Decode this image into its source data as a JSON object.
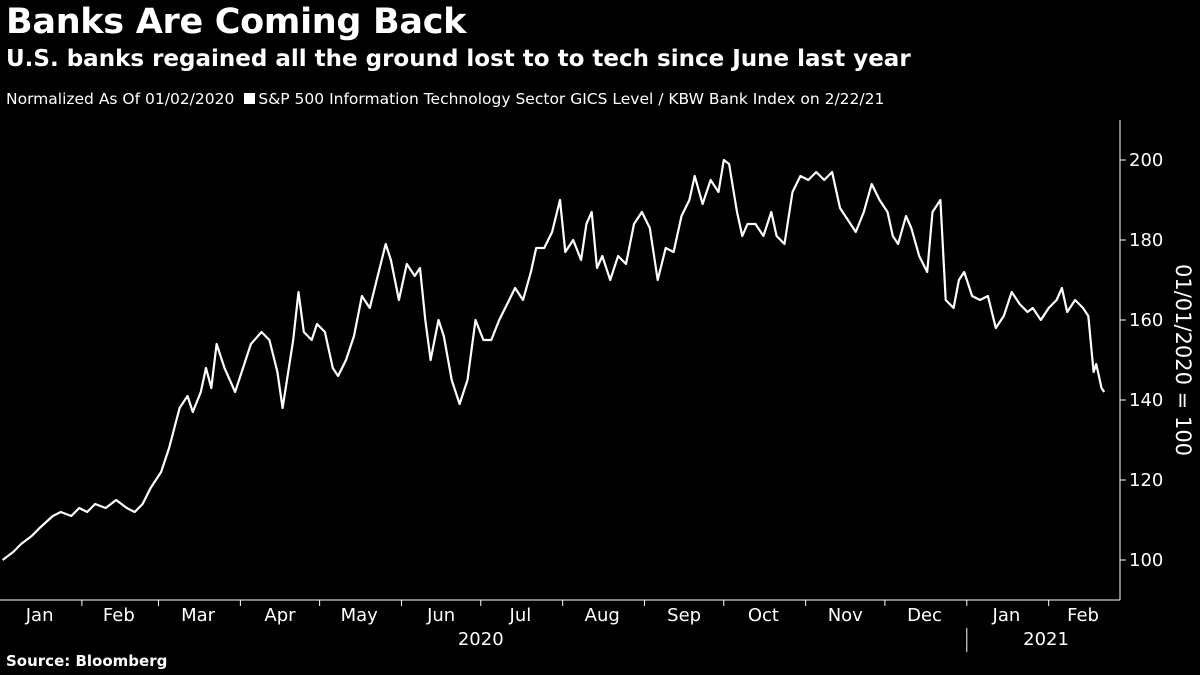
{
  "header": {
    "title": "Banks Are Coming Back",
    "subtitle": "U.S. banks regained all the ground lost to to tech since June last year"
  },
  "legend": {
    "note": "Normalized As Of 01/02/2020",
    "series_label": "S&P 500 Information Technology Sector GICS Level / KBW Bank Index on 2/22/21"
  },
  "footer": {
    "source": "Source: Bloomberg"
  },
  "colors": {
    "background": "#000000",
    "line": "#ffffff"
  },
  "chart_data": {
    "type": "line",
    "ylabel": "01/01/2020 = 100",
    "ylim": [
      90,
      210
    ],
    "yticks": [
      100,
      120,
      140,
      160,
      180,
      200
    ],
    "y_axis_position": "right",
    "grid": false,
    "x_range": [
      "2020-01-01",
      "2021-02-28"
    ],
    "month_labels": [
      {
        "label": "Jan",
        "date": "2020-01-16"
      },
      {
        "label": "Feb",
        "date": "2020-02-15"
      },
      {
        "label": "Mar",
        "date": "2020-03-16"
      },
      {
        "label": "Apr",
        "date": "2020-04-16"
      },
      {
        "label": "May",
        "date": "2020-05-16"
      },
      {
        "label": "Jun",
        "date": "2020-06-16"
      },
      {
        "label": "Jul",
        "date": "2020-07-16"
      },
      {
        "label": "Aug",
        "date": "2020-08-16"
      },
      {
        "label": "Sep",
        "date": "2020-09-16"
      },
      {
        "label": "Oct",
        "date": "2020-10-16"
      },
      {
        "label": "Nov",
        "date": "2020-11-16"
      },
      {
        "label": "Dec",
        "date": "2020-12-16"
      },
      {
        "label": "Jan",
        "date": "2021-01-16"
      },
      {
        "label": "Feb",
        "date": "2021-02-14"
      }
    ],
    "month_boundaries": [
      "2020-02-01",
      "2020-03-01",
      "2020-04-01",
      "2020-05-01",
      "2020-06-01",
      "2020-07-01",
      "2020-08-01",
      "2020-09-01",
      "2020-10-01",
      "2020-11-01",
      "2020-12-01",
      "2021-01-01",
      "2021-02-01"
    ],
    "year_labels": [
      {
        "label": "2020",
        "date": "2020-07-01"
      },
      {
        "label": "2021",
        "date": "2021-01-31"
      }
    ],
    "year_boundary": "2021-01-01",
    "series": [
      {
        "points": [
          [
            "2020-01-02",
            100
          ],
          [
            "2020-01-06",
            102
          ],
          [
            "2020-01-09",
            104
          ],
          [
            "2020-01-13",
            106
          ],
          [
            "2020-01-16",
            108
          ],
          [
            "2020-01-21",
            111
          ],
          [
            "2020-01-24",
            112
          ],
          [
            "2020-01-28",
            111
          ],
          [
            "2020-01-31",
            113
          ],
          [
            "2020-02-03",
            112
          ],
          [
            "2020-02-06",
            114
          ],
          [
            "2020-02-10",
            113
          ],
          [
            "2020-02-14",
            115
          ],
          [
            "2020-02-18",
            113
          ],
          [
            "2020-02-21",
            112
          ],
          [
            "2020-02-24",
            114
          ],
          [
            "2020-02-27",
            118
          ],
          [
            "2020-03-02",
            122
          ],
          [
            "2020-03-05",
            128
          ],
          [
            "2020-03-09",
            138
          ],
          [
            "2020-03-12",
            141
          ],
          [
            "2020-03-14",
            137
          ],
          [
            "2020-03-17",
            142
          ],
          [
            "2020-03-19",
            148
          ],
          [
            "2020-03-21",
            143
          ],
          [
            "2020-03-23",
            154
          ],
          [
            "2020-03-26",
            148
          ],
          [
            "2020-03-30",
            142
          ],
          [
            "2020-04-02",
            148
          ],
          [
            "2020-04-05",
            154
          ],
          [
            "2020-04-09",
            157
          ],
          [
            "2020-04-12",
            155
          ],
          [
            "2020-04-15",
            147
          ],
          [
            "2020-04-17",
            138
          ],
          [
            "2020-04-21",
            155
          ],
          [
            "2020-04-23",
            167
          ],
          [
            "2020-04-25",
            157
          ],
          [
            "2020-04-28",
            155
          ],
          [
            "2020-04-30",
            159
          ],
          [
            "2020-05-03",
            157
          ],
          [
            "2020-05-06",
            148
          ],
          [
            "2020-05-08",
            146
          ],
          [
            "2020-05-11",
            150
          ],
          [
            "2020-05-14",
            156
          ],
          [
            "2020-05-17",
            166
          ],
          [
            "2020-05-20",
            163
          ],
          [
            "2020-05-23",
            171
          ],
          [
            "2020-05-26",
            179
          ],
          [
            "2020-05-28",
            175
          ],
          [
            "2020-05-31",
            165
          ],
          [
            "2020-06-03",
            174
          ],
          [
            "2020-06-06",
            171
          ],
          [
            "2020-06-08",
            173
          ],
          [
            "2020-06-10",
            160
          ],
          [
            "2020-06-12",
            150
          ],
          [
            "2020-06-15",
            160
          ],
          [
            "2020-06-17",
            156
          ],
          [
            "2020-06-20",
            145
          ],
          [
            "2020-06-23",
            139
          ],
          [
            "2020-06-26",
            145
          ],
          [
            "2020-06-29",
            160
          ],
          [
            "2020-07-02",
            155
          ],
          [
            "2020-07-05",
            155
          ],
          [
            "2020-07-08",
            160
          ],
          [
            "2020-07-11",
            164
          ],
          [
            "2020-07-14",
            168
          ],
          [
            "2020-07-17",
            165
          ],
          [
            "2020-07-20",
            172
          ],
          [
            "2020-07-22",
            178
          ],
          [
            "2020-07-25",
            178
          ],
          [
            "2020-07-28",
            182
          ],
          [
            "2020-07-31",
            190
          ],
          [
            "2020-08-02",
            177
          ],
          [
            "2020-08-05",
            180
          ],
          [
            "2020-08-08",
            175
          ],
          [
            "2020-08-10",
            184
          ],
          [
            "2020-08-12",
            187
          ],
          [
            "2020-08-14",
            173
          ],
          [
            "2020-08-16",
            176
          ],
          [
            "2020-08-19",
            170
          ],
          [
            "2020-08-22",
            176
          ],
          [
            "2020-08-25",
            174
          ],
          [
            "2020-08-28",
            184
          ],
          [
            "2020-08-31",
            187
          ],
          [
            "2020-09-03",
            183
          ],
          [
            "2020-09-06",
            170
          ],
          [
            "2020-09-09",
            178
          ],
          [
            "2020-09-12",
            177
          ],
          [
            "2020-09-15",
            186
          ],
          [
            "2020-09-18",
            190
          ],
          [
            "2020-09-20",
            196
          ],
          [
            "2020-09-23",
            189
          ],
          [
            "2020-09-26",
            195
          ],
          [
            "2020-09-29",
            192
          ],
          [
            "2020-10-01",
            200
          ],
          [
            "2020-10-03",
            199
          ],
          [
            "2020-10-06",
            187
          ],
          [
            "2020-10-08",
            181
          ],
          [
            "2020-10-10",
            184
          ],
          [
            "2020-10-13",
            184
          ],
          [
            "2020-10-16",
            181
          ],
          [
            "2020-10-19",
            187
          ],
          [
            "2020-10-21",
            181
          ],
          [
            "2020-10-24",
            179
          ],
          [
            "2020-10-27",
            192
          ],
          [
            "2020-10-30",
            196
          ],
          [
            "2020-11-02",
            195
          ],
          [
            "2020-11-05",
            197
          ],
          [
            "2020-11-08",
            195
          ],
          [
            "2020-11-11",
            197
          ],
          [
            "2020-11-14",
            188
          ],
          [
            "2020-11-17",
            185
          ],
          [
            "2020-11-20",
            182
          ],
          [
            "2020-11-23",
            187
          ],
          [
            "2020-11-26",
            194
          ],
          [
            "2020-11-29",
            190
          ],
          [
            "2020-12-02",
            187
          ],
          [
            "2020-12-04",
            181
          ],
          [
            "2020-12-06",
            179
          ],
          [
            "2020-12-09",
            186
          ],
          [
            "2020-12-11",
            183
          ],
          [
            "2020-12-14",
            176
          ],
          [
            "2020-12-17",
            172
          ],
          [
            "2020-12-19",
            187
          ],
          [
            "2020-12-22",
            190
          ],
          [
            "2020-12-24",
            165
          ],
          [
            "2020-12-27",
            163
          ],
          [
            "2020-12-29",
            170
          ],
          [
            "2020-12-31",
            172
          ],
          [
            "2021-01-03",
            166
          ],
          [
            "2021-01-06",
            165
          ],
          [
            "2021-01-09",
            166
          ],
          [
            "2021-01-12",
            158
          ],
          [
            "2021-01-15",
            161
          ],
          [
            "2021-01-18",
            167
          ],
          [
            "2021-01-21",
            164
          ],
          [
            "2021-01-24",
            162
          ],
          [
            "2021-01-26",
            163
          ],
          [
            "2021-01-29",
            160
          ],
          [
            "2021-02-01",
            163
          ],
          [
            "2021-02-04",
            165
          ],
          [
            "2021-02-06",
            168
          ],
          [
            "2021-02-08",
            162
          ],
          [
            "2021-02-11",
            165
          ],
          [
            "2021-02-14",
            163
          ],
          [
            "2021-02-16",
            161
          ],
          [
            "2021-02-18",
            147
          ],
          [
            "2021-02-19",
            149
          ],
          [
            "2021-02-20",
            146
          ],
          [
            "2021-02-21",
            143
          ],
          [
            "2021-02-22",
            142
          ]
        ]
      }
    ]
  }
}
